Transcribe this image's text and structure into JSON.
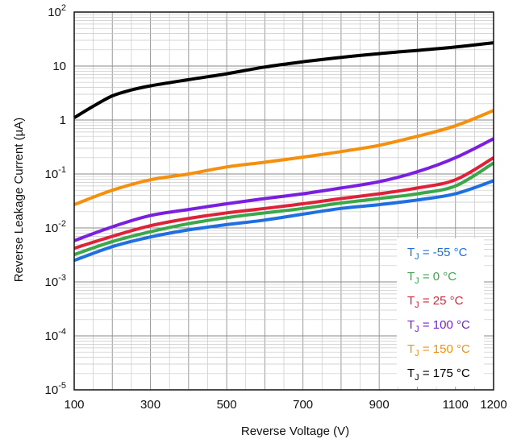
{
  "chart_data": {
    "type": "line",
    "xlabel": "Reverse Voltage (V)",
    "ylabel": "Reverse Leakage Current (µA)",
    "xlim": [
      100,
      1200
    ],
    "ylim": [
      1e-05,
      100
    ],
    "y_scale": "log",
    "grid": true,
    "legend_placement": "bottom-right",
    "x_ticks": [
      {
        "value": 100,
        "label": "100"
      },
      {
        "value": 300,
        "label": "300"
      },
      {
        "value": 500,
        "label": "500"
      },
      {
        "value": 700,
        "label": "700"
      },
      {
        "value": 900,
        "label": "900"
      },
      {
        "value": 1100,
        "label": "1100"
      },
      {
        "value": 1200,
        "label": "1200"
      }
    ],
    "y_ticks": [
      {
        "value": 100,
        "base": "10",
        "exp": "2"
      },
      {
        "value": 10,
        "base": "10",
        "exp": ""
      },
      {
        "value": 1,
        "base": "1",
        "exp": ""
      },
      {
        "value": 0.1,
        "base": "10",
        "exp": "-1"
      },
      {
        "value": 0.01,
        "base": "10",
        "exp": "-2"
      },
      {
        "value": 0.001,
        "base": "10",
        "exp": "-3"
      },
      {
        "value": 0.0001,
        "base": "10",
        "exp": "-4"
      },
      {
        "value": 1e-05,
        "base": "10",
        "exp": "-5"
      }
    ],
    "series": [
      {
        "name": "T_J = -55 °C",
        "label_pre": "T",
        "label_sub": "J",
        "label_post": " = -55 °C",
        "color": "#1f6fe0",
        "x": [
          100,
          200,
          300,
          400,
          500,
          600,
          700,
          800,
          900,
          1000,
          1100,
          1200
        ],
        "y": [
          0.0025,
          0.0045,
          0.0068,
          0.0092,
          0.0115,
          0.014,
          0.018,
          0.023,
          0.027,
          0.033,
          0.043,
          0.075
        ]
      },
      {
        "name": "T_J = 0 °C",
        "label_pre": "T",
        "label_sub": "J",
        "label_post": " = 0 °C",
        "color": "#3aa84a",
        "x": [
          100,
          200,
          300,
          400,
          500,
          600,
          700,
          800,
          900,
          1000,
          1100,
          1200
        ],
        "y": [
          0.0032,
          0.0056,
          0.0085,
          0.012,
          0.0155,
          0.019,
          0.023,
          0.029,
          0.035,
          0.043,
          0.06,
          0.16
        ]
      },
      {
        "name": "T_J = 25 °C",
        "label_pre": "T",
        "label_sub": "J",
        "label_post": " = 25 °C",
        "color": "#e0213a",
        "x": [
          100,
          200,
          300,
          400,
          500,
          600,
          700,
          800,
          900,
          1000,
          1100,
          1200
        ],
        "y": [
          0.0042,
          0.007,
          0.011,
          0.015,
          0.019,
          0.023,
          0.028,
          0.035,
          0.043,
          0.055,
          0.078,
          0.2
        ]
      },
      {
        "name": "T_J = 100 °C",
        "label_pre": "T",
        "label_sub": "J",
        "label_post": " = 100 °C",
        "color": "#7a1fe0",
        "x": [
          100,
          200,
          300,
          400,
          500,
          600,
          700,
          800,
          900,
          1000,
          1100,
          1200
        ],
        "y": [
          0.0058,
          0.0105,
          0.017,
          0.022,
          0.028,
          0.035,
          0.043,
          0.055,
          0.072,
          0.11,
          0.2,
          0.45
        ]
      },
      {
        "name": "T_J = 150 °C",
        "label_pre": "T",
        "label_sub": "J",
        "label_post": " = 150 °C",
        "color": "#f5900f",
        "x": [
          100,
          200,
          300,
          400,
          500,
          600,
          700,
          800,
          900,
          1000,
          1100,
          1200
        ],
        "y": [
          0.027,
          0.05,
          0.078,
          0.1,
          0.135,
          0.165,
          0.205,
          0.26,
          0.34,
          0.5,
          0.78,
          1.5
        ]
      },
      {
        "name": "T_J = 175 °C",
        "label_pre": "T",
        "label_sub": "J",
        "label_post": " = 175 °C",
        "color": "#000000",
        "x": [
          100,
          150,
          200,
          250,
          300,
          400,
          500,
          600,
          700,
          800,
          900,
          1000,
          1100,
          1200
        ],
        "y": [
          1.1,
          1.8,
          2.8,
          3.6,
          4.3,
          5.6,
          7.2,
          9.6,
          12.0,
          14.5,
          17.0,
          19.5,
          22.5,
          27.0
        ]
      }
    ]
  }
}
